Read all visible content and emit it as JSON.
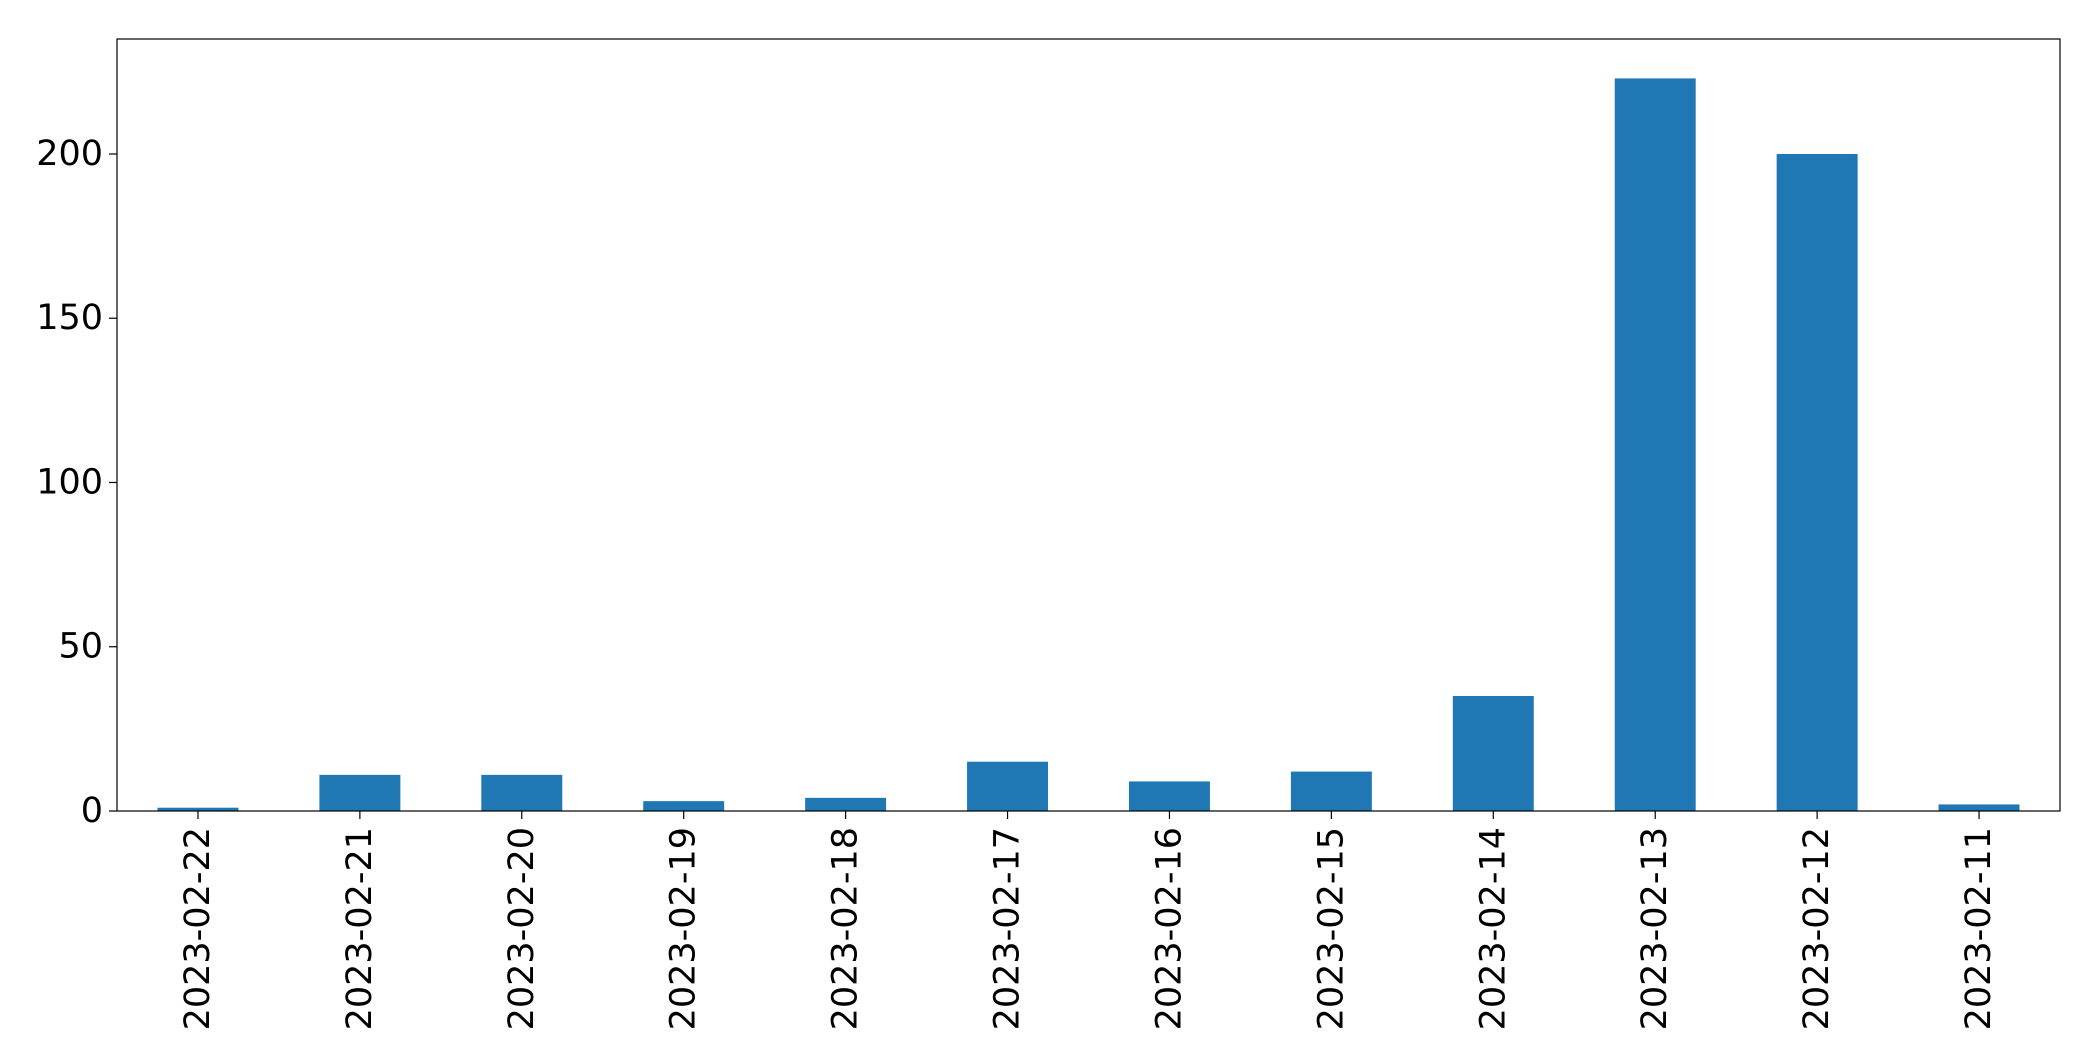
{
  "chart_data": {
    "type": "bar",
    "title": "",
    "xlabel": "",
    "ylabel": "",
    "categories": [
      "2023-02-22",
      "2023-02-21",
      "2023-02-20",
      "2023-02-19",
      "2023-02-18",
      "2023-02-17",
      "2023-02-16",
      "2023-02-15",
      "2023-02-14",
      "2023-02-13",
      "2023-02-12",
      "2023-02-11"
    ],
    "values": [
      1,
      11,
      11,
      3,
      4,
      15,
      9,
      12,
      35,
      223,
      200,
      2
    ],
    "ylim": [
      0,
      235
    ],
    "yticks": [
      "0",
      "50",
      "100",
      "150",
      "200"
    ],
    "grid": false,
    "legend": "none",
    "bar_color": "#1f77b4"
  }
}
